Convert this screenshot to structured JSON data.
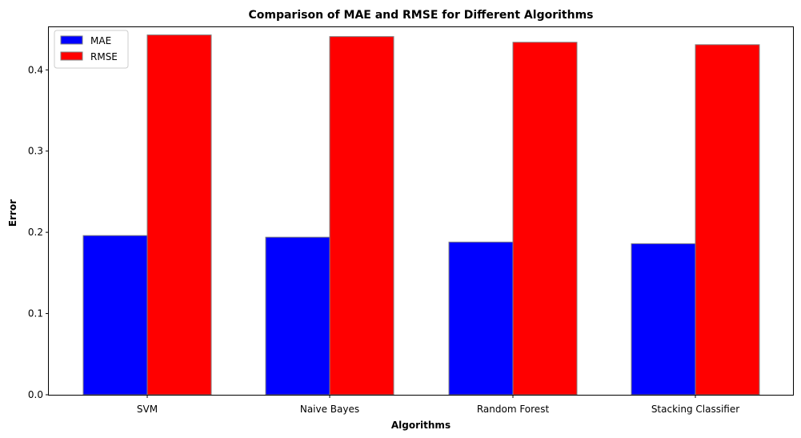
{
  "chart_data": {
    "type": "bar",
    "title": "Comparison of MAE and RMSE for Different Algorithms",
    "xlabel": "Algorithms",
    "ylabel": "Error",
    "categories": [
      "SVM",
      "Naive Bayes",
      "Random Forest",
      "Stacking Classifier"
    ],
    "series": [
      {
        "name": "MAE",
        "color": "#0000ff",
        "values": [
          0.196,
          0.194,
          0.188,
          0.186
        ]
      },
      {
        "name": "RMSE",
        "color": "#ff0000",
        "values": [
          0.443,
          0.441,
          0.434,
          0.431
        ]
      }
    ],
    "ylim": [
      0,
      0.4525
    ],
    "yticks": [
      "0.0",
      "0.1",
      "0.2",
      "0.3",
      "0.4"
    ],
    "bar_edge_color": "#808080",
    "grid": false,
    "legend_position": "upper-left"
  }
}
